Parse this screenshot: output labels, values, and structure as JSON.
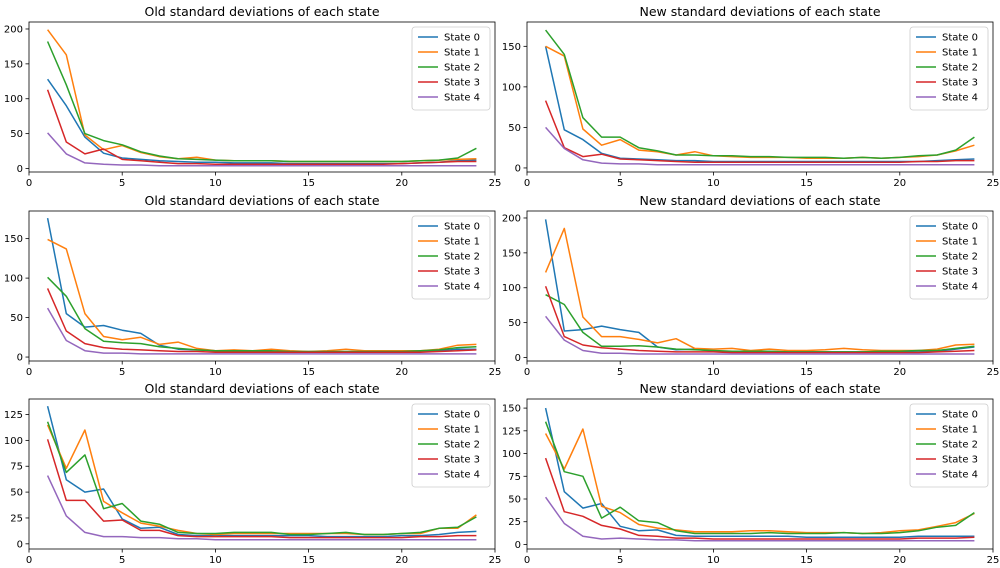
{
  "figure": {
    "background": "#ffffff",
    "series_colors": [
      "#1f77b4",
      "#ff7f0e",
      "#2ca02c",
      "#d62728",
      "#9467bd"
    ]
  },
  "chart_data": [
    {
      "type": "line",
      "title": "Old standard deviations of each state",
      "xlim": [
        0,
        25
      ],
      "ylim": [
        -5,
        210
      ],
      "xticks": [
        0,
        5,
        10,
        15,
        20,
        25
      ],
      "yticks": [
        0,
        50,
        100,
        150,
        200
      ],
      "legend": "top-right",
      "x": [
        1,
        2,
        3,
        4,
        5,
        6,
        7,
        8,
        9,
        10,
        11,
        12,
        13,
        14,
        15,
        16,
        17,
        18,
        19,
        20,
        21,
        22,
        23,
        24
      ],
      "series": [
        {
          "name": "State 0",
          "values": [
            128,
            90,
            45,
            22,
            15,
            13,
            11,
            10,
            9,
            9,
            8,
            8,
            8,
            7,
            7,
            7,
            7,
            7,
            7,
            7,
            8,
            9,
            11,
            12
          ]
        },
        {
          "name": "State 1",
          "values": [
            199,
            163,
            48,
            27,
            33,
            23,
            17,
            14,
            16,
            12,
            11,
            11,
            11,
            10,
            10,
            10,
            10,
            10,
            10,
            10,
            11,
            12,
            13,
            14
          ]
        },
        {
          "name": "State 2",
          "values": [
            182,
            120,
            50,
            40,
            34,
            24,
            18,
            14,
            13,
            12,
            11,
            11,
            11,
            10,
            10,
            10,
            10,
            10,
            10,
            10,
            11,
            12,
            15,
            29
          ]
        },
        {
          "name": "State 3",
          "values": [
            113,
            38,
            21,
            28,
            13,
            11,
            9,
            7,
            7,
            6,
            6,
            6,
            6,
            6,
            6,
            6,
            6,
            6,
            6,
            7,
            8,
            9,
            10,
            10
          ]
        },
        {
          "name": "State 4",
          "values": [
            51,
            21,
            8,
            6,
            5,
            5,
            4,
            4,
            4,
            4,
            4,
            4,
            4,
            4,
            4,
            4,
            4,
            4,
            4,
            4,
            4,
            4,
            4,
            4
          ]
        }
      ]
    },
    {
      "type": "line",
      "title": "New standard deviations of each state",
      "xlim": [
        0,
        25
      ],
      "ylim": [
        -5,
        180
      ],
      "xticks": [
        0,
        5,
        10,
        15,
        20,
        25
      ],
      "yticks": [
        0,
        50,
        100,
        150
      ],
      "legend": "top-right",
      "x": [
        1,
        2,
        3,
        4,
        5,
        6,
        7,
        8,
        9,
        10,
        11,
        12,
        13,
        14,
        15,
        16,
        17,
        18,
        19,
        20,
        21,
        22,
        23,
        24
      ],
      "series": [
        {
          "name": "State 0",
          "values": [
            150,
            47,
            35,
            18,
            12,
            11,
            10,
            9,
            9,
            8,
            8,
            8,
            8,
            8,
            8,
            8,
            8,
            8,
            8,
            8,
            8,
            9,
            10,
            11
          ]
        },
        {
          "name": "State 1",
          "values": [
            150,
            138,
            48,
            28,
            35,
            22,
            20,
            16,
            20,
            15,
            14,
            13,
            13,
            13,
            12,
            12,
            12,
            13,
            12,
            13,
            14,
            16,
            21,
            28
          ]
        },
        {
          "name": "State 2",
          "values": [
            170,
            140,
            62,
            38,
            38,
            25,
            21,
            16,
            16,
            15,
            15,
            14,
            14,
            13,
            13,
            13,
            12,
            13,
            12,
            13,
            15,
            16,
            22,
            38
          ]
        },
        {
          "name": "State 3",
          "values": [
            83,
            25,
            14,
            17,
            11,
            10,
            9,
            8,
            7,
            7,
            7,
            7,
            7,
            7,
            7,
            7,
            7,
            7,
            7,
            7,
            8,
            8,
            9,
            9
          ]
        },
        {
          "name": "State 4",
          "values": [
            50,
            24,
            10,
            6,
            5,
            5,
            4,
            4,
            4,
            4,
            4,
            4,
            4,
            4,
            4,
            4,
            4,
            4,
            4,
            4,
            4,
            4,
            4,
            4
          ]
        }
      ]
    },
    {
      "type": "line",
      "title": "Old standard deviations of each state",
      "xlim": [
        0,
        25
      ],
      "ylim": [
        -5,
        185
      ],
      "xticks": [
        0,
        5,
        10,
        15,
        20,
        25
      ],
      "yticks": [
        0,
        50,
        100,
        150
      ],
      "legend": "top-right",
      "x": [
        1,
        2,
        3,
        4,
        5,
        6,
        7,
        8,
        9,
        10,
        11,
        12,
        13,
        14,
        15,
        16,
        17,
        18,
        19,
        20,
        21,
        22,
        23,
        24
      ],
      "series": [
        {
          "name": "State 0",
          "values": [
            176,
            55,
            38,
            40,
            34,
            30,
            15,
            10,
            9,
            8,
            8,
            7,
            7,
            6,
            6,
            6,
            6,
            6,
            6,
            6,
            7,
            8,
            10,
            10
          ]
        },
        {
          "name": "State 1",
          "values": [
            149,
            137,
            55,
            26,
            22,
            25,
            16,
            19,
            11,
            8,
            9,
            8,
            10,
            8,
            7,
            8,
            10,
            8,
            8,
            8,
            8,
            10,
            15,
            16
          ]
        },
        {
          "name": "State 2",
          "values": [
            101,
            77,
            36,
            20,
            18,
            17,
            13,
            11,
            9,
            8,
            8,
            8,
            8,
            7,
            7,
            7,
            7,
            7,
            7,
            7,
            8,
            9,
            12,
            13
          ]
        },
        {
          "name": "State 3",
          "values": [
            87,
            33,
            17,
            12,
            10,
            9,
            8,
            7,
            7,
            6,
            6,
            6,
            6,
            6,
            6,
            6,
            6,
            6,
            6,
            6,
            6,
            7,
            8,
            9
          ]
        },
        {
          "name": "State 4",
          "values": [
            62,
            21,
            8,
            5,
            5,
            4,
            4,
            4,
            4,
            4,
            4,
            4,
            4,
            4,
            4,
            4,
            4,
            4,
            4,
            4,
            4,
            4,
            4,
            4
          ]
        }
      ]
    },
    {
      "type": "line",
      "title": "New standard deviations of each state",
      "xlim": [
        0,
        25
      ],
      "ylim": [
        -5,
        210
      ],
      "xticks": [
        0,
        5,
        10,
        15,
        20,
        25
      ],
      "yticks": [
        0,
        50,
        100,
        150,
        200
      ],
      "legend": "top-right",
      "x": [
        1,
        2,
        3,
        4,
        5,
        6,
        7,
        8,
        9,
        10,
        11,
        12,
        13,
        14,
        15,
        16,
        17,
        18,
        19,
        20,
        21,
        22,
        23,
        24
      ],
      "series": [
        {
          "name": "State 0",
          "values": [
            198,
            38,
            40,
            45,
            40,
            36,
            15,
            11,
            12,
            9,
            9,
            8,
            8,
            8,
            8,
            8,
            8,
            8,
            8,
            8,
            8,
            9,
            12,
            15
          ]
        },
        {
          "name": "State 1",
          "values": [
            122,
            185,
            58,
            30,
            30,
            26,
            21,
            27,
            13,
            12,
            13,
            10,
            12,
            10,
            10,
            11,
            13,
            11,
            10,
            10,
            10,
            12,
            18,
            19
          ]
        },
        {
          "name": "State 2",
          "values": [
            90,
            76,
            36,
            16,
            16,
            17,
            15,
            12,
            11,
            10,
            9,
            9,
            9,
            8,
            8,
            8,
            8,
            8,
            9,
            9,
            10,
            10,
            13,
            16
          ]
        },
        {
          "name": "State 3",
          "values": [
            102,
            30,
            18,
            14,
            12,
            10,
            9,
            8,
            8,
            8,
            7,
            7,
            7,
            7,
            7,
            7,
            7,
            7,
            7,
            7,
            7,
            8,
            9,
            10
          ]
        },
        {
          "name": "State 4",
          "values": [
            59,
            25,
            10,
            6,
            6,
            5,
            5,
            5,
            5,
            5,
            5,
            5,
            5,
            5,
            5,
            5,
            5,
            5,
            5,
            5,
            5,
            5,
            5,
            5
          ]
        }
      ]
    },
    {
      "type": "line",
      "title": "Old standard deviations of each state",
      "xlim": [
        0,
        25
      ],
      "ylim": [
        -5,
        140
      ],
      "xticks": [
        0,
        5,
        10,
        15,
        20,
        25
      ],
      "yticks": [
        0,
        25,
        50,
        75,
        100,
        125
      ],
      "legend": "top-right",
      "x": [
        1,
        2,
        3,
        4,
        5,
        6,
        7,
        8,
        9,
        10,
        11,
        12,
        13,
        14,
        15,
        16,
        17,
        18,
        19,
        20,
        21,
        22,
        23,
        24
      ],
      "series": [
        {
          "name": "State 0",
          "values": [
            133,
            62,
            50,
            53,
            24,
            15,
            16,
            9,
            8,
            8,
            8,
            8,
            8,
            8,
            8,
            7,
            7,
            7,
            7,
            8,
            8,
            9,
            11,
            12
          ]
        },
        {
          "name": "State 1",
          "values": [
            115,
            73,
            110,
            41,
            30,
            20,
            17,
            13,
            10,
            9,
            10,
            10,
            10,
            10,
            10,
            10,
            10,
            9,
            9,
            10,
            10,
            15,
            15,
            28
          ]
        },
        {
          "name": "State 2",
          "values": [
            118,
            69,
            86,
            34,
            39,
            22,
            19,
            11,
            10,
            10,
            11,
            11,
            11,
            9,
            9,
            10,
            11,
            9,
            9,
            10,
            11,
            15,
            16,
            26
          ]
        },
        {
          "name": "State 3",
          "values": [
            101,
            42,
            42,
            22,
            23,
            13,
            13,
            8,
            7,
            7,
            7,
            7,
            7,
            6,
            6,
            6,
            6,
            6,
            6,
            6,
            7,
            7,
            8,
            8
          ]
        },
        {
          "name": "State 4",
          "values": [
            66,
            27,
            11,
            7,
            7,
            6,
            6,
            5,
            5,
            4,
            4,
            4,
            4,
            4,
            4,
            4,
            4,
            4,
            4,
            4,
            4,
            4,
            4,
            4
          ]
        }
      ]
    },
    {
      "type": "line",
      "title": "New standard deviations of each state",
      "xlim": [
        0,
        25
      ],
      "ylim": [
        -5,
        160
      ],
      "xticks": [
        0,
        5,
        10,
        15,
        20,
        25
      ],
      "yticks": [
        0,
        25,
        50,
        75,
        100,
        125,
        150
      ],
      "legend": "top-right",
      "x": [
        1,
        2,
        3,
        4,
        5,
        6,
        7,
        8,
        9,
        10,
        11,
        12,
        13,
        14,
        15,
        16,
        17,
        18,
        19,
        20,
        21,
        22,
        23,
        24
      ],
      "series": [
        {
          "name": "State 0",
          "values": [
            150,
            58,
            40,
            45,
            20,
            15,
            16,
            10,
            9,
            9,
            9,
            9,
            9,
            9,
            8,
            8,
            8,
            8,
            8,
            8,
            9,
            9,
            9,
            9
          ]
        },
        {
          "name": "State 1",
          "values": [
            122,
            83,
            127,
            42,
            35,
            22,
            18,
            16,
            14,
            14,
            14,
            15,
            15,
            14,
            13,
            13,
            13,
            12,
            13,
            15,
            16,
            20,
            24,
            34
          ]
        },
        {
          "name": "State 2",
          "values": [
            135,
            80,
            75,
            29,
            41,
            26,
            24,
            15,
            12,
            12,
            12,
            12,
            13,
            12,
            12,
            12,
            13,
            12,
            12,
            13,
            15,
            19,
            21,
            35
          ]
        },
        {
          "name": "State 3",
          "values": [
            95,
            36,
            31,
            21,
            17,
            10,
            9,
            7,
            7,
            6,
            6,
            6,
            6,
            6,
            6,
            6,
            6,
            6,
            6,
            6,
            7,
            7,
            7,
            8
          ]
        },
        {
          "name": "State 4",
          "values": [
            52,
            23,
            9,
            6,
            7,
            6,
            5,
            5,
            4,
            4,
            4,
            4,
            4,
            4,
            4,
            4,
            4,
            4,
            4,
            4,
            4,
            4,
            4,
            4
          ]
        }
      ]
    }
  ]
}
